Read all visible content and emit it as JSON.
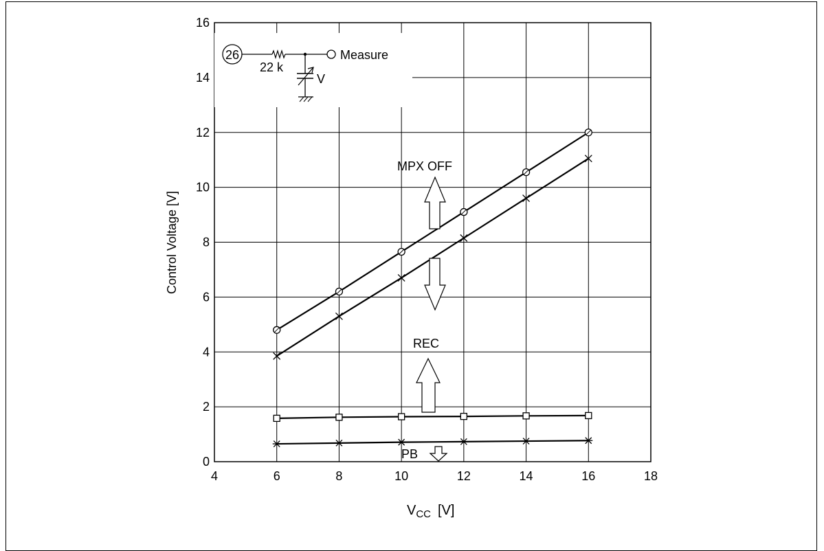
{
  "chart_data": {
    "type": "line",
    "title": "",
    "xlabel_main": "V",
    "xlabel_sub": "CC",
    "xlabel_unit": "[V]",
    "ylabel": "Control Voltage [V]",
    "xlim": [
      4,
      18
    ],
    "ylim": [
      0,
      16
    ],
    "x_ticks": [
      "4",
      "6",
      "8",
      "10",
      "12",
      "14",
      "16",
      "18"
    ],
    "y_ticks": [
      "0",
      "2",
      "4",
      "6",
      "8",
      "10",
      "12",
      "14",
      "16"
    ],
    "grid": true,
    "x": [
      6,
      8,
      10,
      12,
      14,
      16
    ],
    "series": [
      {
        "marker": "circle",
        "values": [
          4.8,
          6.2,
          7.65,
          9.1,
          10.55,
          12.0
        ]
      },
      {
        "marker": "cross",
        "values": [
          3.85,
          5.3,
          6.7,
          8.15,
          9.6,
          11.05
        ]
      },
      {
        "marker": "square",
        "values": [
          1.58,
          1.62,
          1.64,
          1.65,
          1.67,
          1.68
        ]
      },
      {
        "marker": "asterisk",
        "values": [
          0.65,
          0.68,
          0.71,
          0.73,
          0.75,
          0.77
        ]
      }
    ],
    "annotations": {
      "mpx_off": "MPX OFF",
      "rec": "REC",
      "pb": "PB"
    },
    "circuit": {
      "pin": "26",
      "resistor": "22 k",
      "measure": "Measure",
      "source": "V"
    }
  }
}
